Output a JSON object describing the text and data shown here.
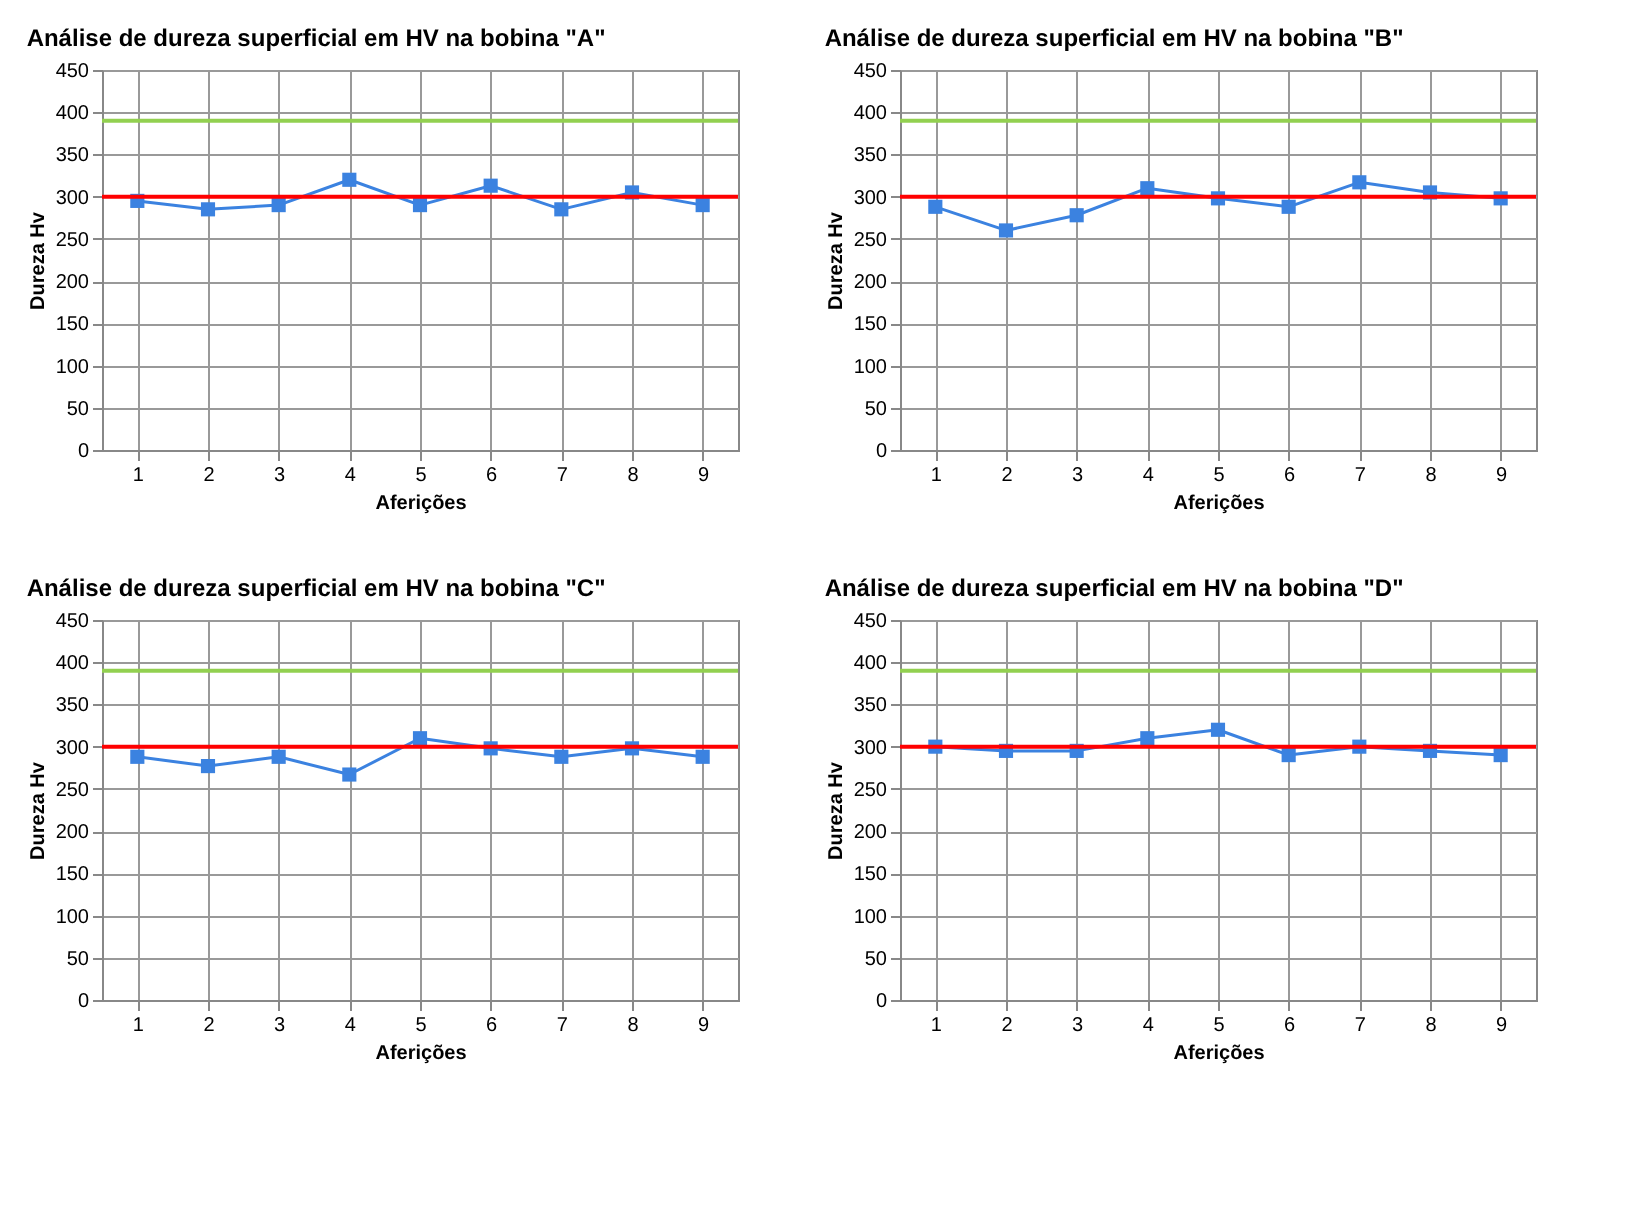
{
  "chart_data": [
    {
      "type": "line",
      "title": "Análise de dureza superficial em HV na bobina \"A\"",
      "xlabel": "Aferições",
      "ylabel": "Dureza Hv",
      "categories": [
        "1",
        "2",
        "3",
        "4",
        "5",
        "6",
        "7",
        "8",
        "9"
      ],
      "series": [
        {
          "color": "#3b82e0",
          "values": [
            295,
            285,
            290,
            320,
            290,
            313,
            285,
            305,
            290
          ]
        }
      ],
      "ylim": [
        0,
        450
      ],
      "yticks": [
        0,
        50,
        100,
        150,
        200,
        250,
        300,
        350,
        400,
        450
      ],
      "grid": true,
      "marker": "square",
      "line_style": "solid",
      "ref_lines": [
        {
          "axis": "y",
          "value": 390,
          "color": "#92d050"
        },
        {
          "axis": "y",
          "value": 300,
          "color": "#ff0000"
        }
      ]
    },
    {
      "type": "line",
      "title": "Análise de dureza superficial em HV na bobina \"B\"",
      "xlabel": "Aferições",
      "ylabel": "Dureza Hv",
      "categories": [
        "1",
        "2",
        "3",
        "4",
        "5",
        "6",
        "7",
        "8",
        "9"
      ],
      "series": [
        {
          "color": "#3b82e0",
          "values": [
            288,
            260,
            278,
            310,
            298,
            288,
            317,
            305,
            298
          ]
        }
      ],
      "ylim": [
        0,
        450
      ],
      "yticks": [
        0,
        50,
        100,
        150,
        200,
        250,
        300,
        350,
        400,
        450
      ],
      "grid": true,
      "marker": "square",
      "line_style": "solid",
      "ref_lines": [
        {
          "axis": "y",
          "value": 390,
          "color": "#92d050"
        },
        {
          "axis": "y",
          "value": 300,
          "color": "#ff0000"
        }
      ]
    },
    {
      "type": "line",
      "title": "Análise de dureza superficial em HV na bobina \"C\"",
      "xlabel": "Aferições",
      "ylabel": "Dureza Hv",
      "categories": [
        "1",
        "2",
        "3",
        "4",
        "5",
        "6",
        "7",
        "8",
        "9"
      ],
      "series": [
        {
          "color": "#3b82e0",
          "values": [
            288,
            277,
            288,
            267,
            310,
            298,
            288,
            298,
            288
          ]
        }
      ],
      "ylim": [
        0,
        450
      ],
      "yticks": [
        0,
        50,
        100,
        150,
        200,
        250,
        300,
        350,
        400,
        450
      ],
      "grid": true,
      "marker": "square",
      "line_style": "solid",
      "ref_lines": [
        {
          "axis": "y",
          "value": 390,
          "color": "#92d050"
        },
        {
          "axis": "y",
          "value": 300,
          "color": "#ff0000"
        }
      ]
    },
    {
      "type": "line",
      "title": "Análise de dureza superficial em HV na bobina \"D\"",
      "xlabel": "Aferições",
      "ylabel": "Dureza Hv",
      "categories": [
        "1",
        "2",
        "3",
        "4",
        "5",
        "6",
        "7",
        "8",
        "9"
      ],
      "series": [
        {
          "color": "#3b82e0",
          "values": [
            300,
            295,
            295,
            310,
            320,
            290,
            300,
            295,
            290
          ]
        }
      ],
      "ylim": [
        0,
        450
      ],
      "yticks": [
        0,
        50,
        100,
        150,
        200,
        250,
        300,
        350,
        400,
        450
      ],
      "grid": true,
      "marker": "square",
      "line_style": "solid",
      "ref_lines": [
        {
          "axis": "y",
          "value": 390,
          "color": "#92d050"
        },
        {
          "axis": "y",
          "value": 300,
          "color": "#ff0000"
        }
      ]
    }
  ]
}
